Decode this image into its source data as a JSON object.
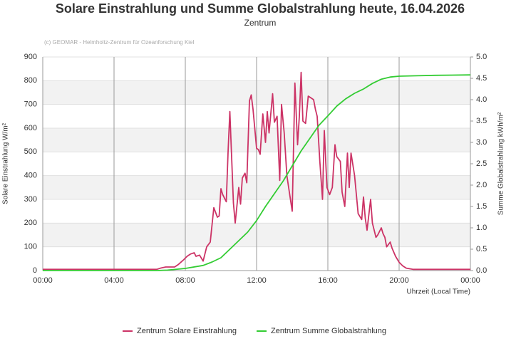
{
  "chart_data": {
    "type": "line",
    "title": "Solare Einstrahlung und Summe Globalstrahlung heute, 16.04.2026",
    "subtitle": "Zentrum",
    "credit": "(c) GEOMAR - Helmholtz-Zentrum für Ozeanforschung Kiel",
    "y_label": "Solare Einstrahlung W/m²",
    "y2_label": "Summe Globalstrahlung kWh/m²",
    "x_label": "Uhrzeit (Local Time)",
    "xlim": [
      0,
      24
    ],
    "xticks": [
      {
        "value": 0,
        "label": "00:00"
      },
      {
        "value": 4,
        "label": "04:00"
      },
      {
        "value": 8,
        "label": "08:00"
      },
      {
        "value": 12,
        "label": "12:00"
      },
      {
        "value": 16,
        "label": "16:00"
      },
      {
        "value": 20,
        "label": "20:00"
      },
      {
        "value": 24,
        "label": "00:00"
      }
    ],
    "ylim": [
      0,
      900
    ],
    "yticks": [
      0,
      100,
      200,
      300,
      400,
      500,
      600,
      700,
      800,
      900
    ],
    "y2lim": [
      0,
      5
    ],
    "y2ticks": [
      {
        "value": 0,
        "label": "0.0"
      },
      {
        "value": 0.5,
        "label": "0.5"
      },
      {
        "value": 1,
        "label": "1.0"
      },
      {
        "value": 1.5,
        "label": "1.5"
      },
      {
        "value": 2,
        "label": "2.0"
      },
      {
        "value": 2.5,
        "label": "2.5"
      },
      {
        "value": 3,
        "label": "3.0"
      },
      {
        "value": 3.5,
        "label": "3.5"
      },
      {
        "value": 4,
        "label": "4.0"
      },
      {
        "value": 4.5,
        "label": "4.5"
      },
      {
        "value": 5,
        "label": "5.0"
      }
    ],
    "grid": true,
    "series": [
      {
        "name": "Zentrum Solare Einstrahlung",
        "color": "#cc3366",
        "x": [
          0,
          6.4,
          6.6,
          6.9,
          7.4,
          7.6,
          7.9,
          8.1,
          8.3,
          8.5,
          8.6,
          8.8,
          9.0,
          9.2,
          9.4,
          9.6,
          9.8,
          9.9,
          10.0,
          10.1,
          10.3,
          10.4,
          10.5,
          10.7,
          10.8,
          11.0,
          11.1,
          11.2,
          11.35,
          11.45,
          11.6,
          11.7,
          11.8,
          12.0,
          12.1,
          12.2,
          12.35,
          12.5,
          12.6,
          12.7,
          12.9,
          13.0,
          13.15,
          13.3,
          13.4,
          13.55,
          13.7,
          13.8,
          14.0,
          14.15,
          14.3,
          14.4,
          14.5,
          14.6,
          14.75,
          14.9,
          15.0,
          15.2,
          15.3,
          15.4,
          15.55,
          15.7,
          15.8,
          15.95,
          16.1,
          16.25,
          16.4,
          16.5,
          16.7,
          16.8,
          16.95,
          17.1,
          17.2,
          17.3,
          17.5,
          17.6,
          17.7,
          17.9,
          18.0,
          18.1,
          18.2,
          18.4,
          18.5,
          18.7,
          18.8,
          19.0,
          19.1,
          19.2,
          19.3,
          19.5,
          19.6,
          19.8,
          20.0,
          20.2,
          20.4,
          20.8,
          24
        ],
        "values": [
          5,
          5,
          10,
          15,
          15,
          25,
          45,
          60,
          70,
          75,
          60,
          65,
          40,
          100,
          120,
          265,
          225,
          230,
          345,
          320,
          290,
          500,
          670,
          285,
          200,
          350,
          280,
          390,
          410,
          370,
          715,
          740,
          680,
          515,
          510,
          490,
          660,
          540,
          670,
          580,
          745,
          625,
          650,
          380,
          700,
          580,
          400,
          350,
          250,
          790,
          530,
          650,
          835,
          630,
          620,
          735,
          730,
          720,
          680,
          650,
          460,
          300,
          590,
          350,
          320,
          350,
          530,
          480,
          460,
          330,
          270,
          495,
          350,
          495,
          400,
          320,
          240,
          215,
          310,
          220,
          170,
          300,
          200,
          140,
          150,
          180,
          155,
          140,
          100,
          120,
          95,
          60,
          35,
          20,
          10,
          5,
          5
        ]
      },
      {
        "name": "Zentrum Summe Globalstrahlung",
        "color": "#33cc33",
        "axis": "y2",
        "x": [
          0,
          6.4,
          7,
          8,
          9,
          9.5,
          10,
          10.5,
          11,
          11.5,
          12,
          12.5,
          13,
          13.5,
          14,
          14.5,
          15,
          15.5,
          16,
          16.5,
          17,
          17.5,
          18,
          18.5,
          19,
          19.5,
          20,
          21,
          22,
          24
        ],
        "values": [
          0,
          0,
          0.01,
          0.05,
          0.12,
          0.2,
          0.3,
          0.5,
          0.7,
          0.9,
          1.17,
          1.5,
          1.8,
          2.1,
          2.45,
          2.8,
          3.1,
          3.4,
          3.62,
          3.85,
          4.02,
          4.15,
          4.25,
          4.38,
          4.48,
          4.53,
          4.55,
          4.56,
          4.57,
          4.58
        ]
      }
    ]
  }
}
